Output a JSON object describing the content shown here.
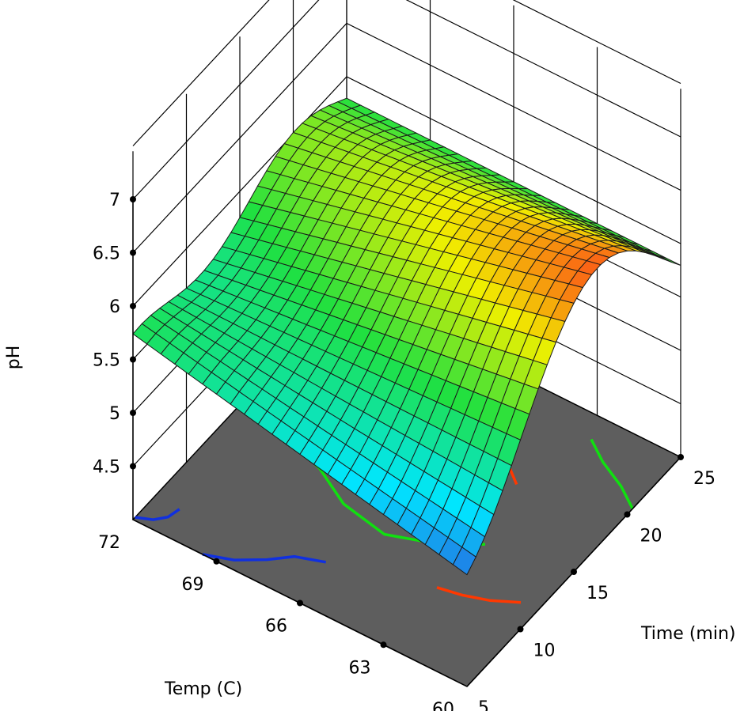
{
  "chart_data": {
    "type": "surface",
    "title": "",
    "zlabel": "pH",
    "xlabel": "Time (min)",
    "ylabel": "Temp (C)",
    "xlim": [
      5,
      25
    ],
    "ylim": [
      60,
      72
    ],
    "zlim": [
      4,
      7
    ],
    "x_ticks": [
      "5",
      "10",
      "15",
      "20",
      "25"
    ],
    "y_ticks": [
      "60",
      "63",
      "66",
      "69",
      "72"
    ],
    "z_ticks": [
      "4.5",
      "5",
      "5.5",
      "6",
      "6.5",
      "7"
    ],
    "grid": true,
    "colormap": [
      "#3b1fd0",
      "#00e6ff",
      "#20e040",
      "#f0f000",
      "#ff2020"
    ],
    "floor_color": "#5e5e5e",
    "contour_colors": {
      "low": "#1030e0",
      "mid": "#10e010",
      "high": "#ff3800"
    },
    "surface_grid_points": {
      "time": [
        5,
        10,
        15,
        20,
        25
      ],
      "temp": [
        60,
        63,
        66,
        69,
        72
      ],
      "pH_at_temp_60": [
        5.05,
        5.3,
        5.95,
        6.55,
        6.6
      ],
      "pH_at_temp_66": [
        5.45,
        5.25,
        5.6,
        6.05,
        6.0
      ],
      "pH_at_temp_72": [
        6.0,
        5.2,
        5.4,
        5.95,
        5.9
      ]
    }
  }
}
